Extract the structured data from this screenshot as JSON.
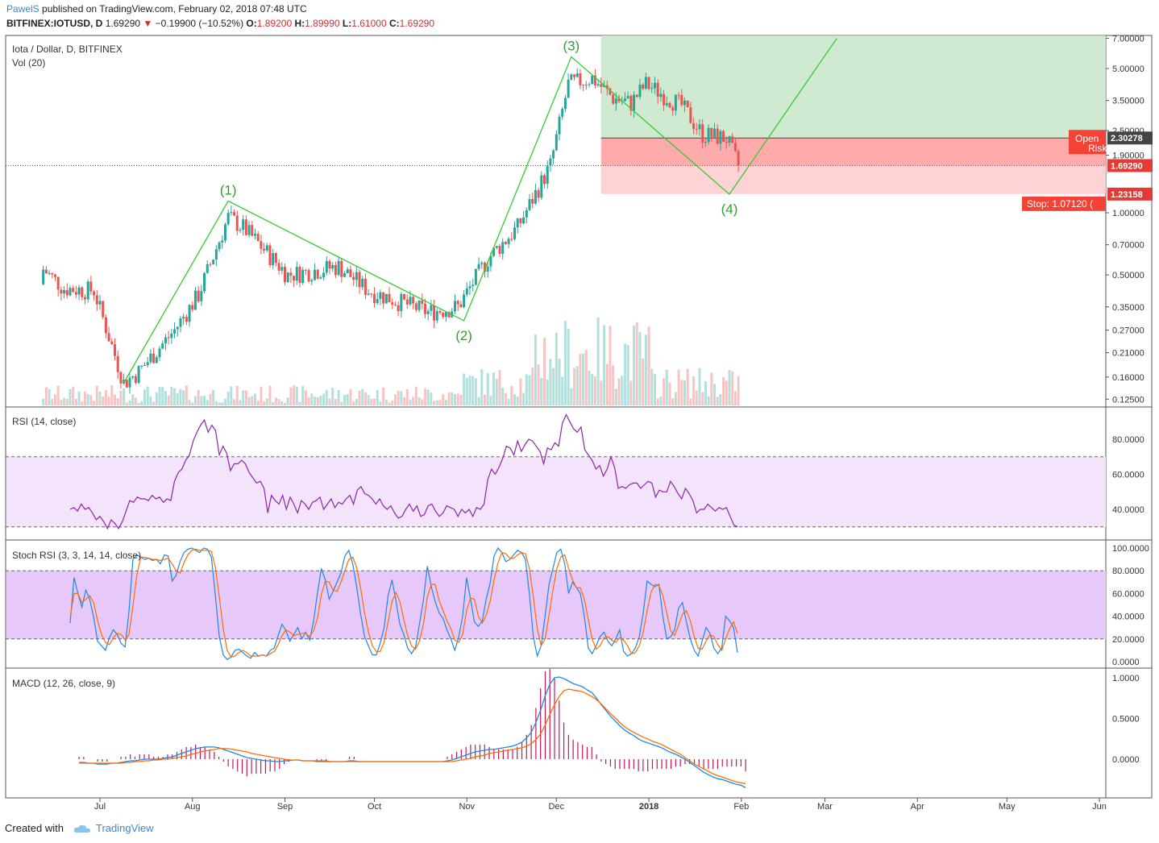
{
  "header": {
    "author": "PawelS",
    "published_text": "published on TradingView.com, February 02, 2018 07:48 UTC",
    "symbol": "BITFINEX:IOTUSD, D",
    "price": "1.69290",
    "change": "−0.19900 (−10.52%)",
    "o_label": "O:",
    "o_value": "1.89200",
    "h_label": "H:",
    "h_value": "1.89990",
    "l_label": "L:",
    "l_value": "1.61000",
    "c_label": "C:",
    "c_value": "1.69290"
  },
  "footer": {
    "created_with": "Created with",
    "brand": "TradingView"
  },
  "chart_data": [
    {
      "type": "candlestick",
      "title": "Iota / Dollar, D, BITFINEX",
      "volume_label": "Vol (20)",
      "y_scale": "log",
      "y_ticks": [
        "7.00000",
        "5.00000",
        "3.50000",
        "2.50000",
        "1.90000",
        "1.00000",
        "0.70000",
        "0.50000",
        "0.35000",
        "0.27000",
        "0.21000",
        "0.16000",
        "0.12500"
      ],
      "x_ticks": [
        "Jul",
        "Aug",
        "Sep",
        "Oct",
        "Nov",
        "Dec",
        "2018",
        "Feb",
        "Mar",
        "Apr",
        "May",
        "Jun"
      ],
      "last_price": 1.6929,
      "last_price_label": "1.69290",
      "swing_points": [
        {
          "label": "(1)",
          "date": "2017-08-13",
          "price": 1.14
        },
        {
          "label": "(2)",
          "date": "2017-10-31",
          "price": 0.3
        },
        {
          "label": "(3)",
          "date": "2017-12-06",
          "price": 5.7
        },
        {
          "label": "(4)",
          "date": "2018-01-28",
          "price": 1.23
        }
      ],
      "wave_path": [
        {
          "date": "2017-07-09",
          "price": 0.15
        },
        {
          "date": "2017-08-13",
          "price": 1.14
        },
        {
          "date": "2017-10-31",
          "price": 0.3
        },
        {
          "date": "2017-12-06",
          "price": 5.7
        },
        {
          "date": "2018-01-28",
          "price": 1.23
        },
        {
          "date": "2018-03-05",
          "price": 7.0
        }
      ],
      "position": {
        "open_label": "Open",
        "risk_label": "Risk",
        "entry": 2.30278,
        "entry_label": "2.30278",
        "stop_level": 1.23158,
        "stop_level_label": "1.23158",
        "stop_text": "Stop: 1.07120 (",
        "target": 7.0
      },
      "colors": {
        "up": "#26a69a",
        "down": "#ef5350",
        "wave": "#33cc33",
        "target_zone": "#c8e6c9",
        "stop_zone": "#ffcdd2",
        "price_line": "#d32f2f"
      }
    },
    {
      "type": "line",
      "title": "RSI (14, close)",
      "y_ticks": [
        "80.0000",
        "60.0000",
        "40.0000"
      ],
      "bands": [
        30,
        70
      ],
      "series": [
        {
          "values": [
            40,
            41,
            39,
            43,
            40,
            41,
            38,
            34,
            36,
            33,
            29,
            34,
            32,
            29,
            33,
            39,
            45,
            44,
            47,
            46,
            46,
            45,
            48,
            46,
            47,
            44,
            46,
            45,
            56,
            61,
            63,
            68,
            71,
            79,
            84,
            88,
            91,
            84,
            88,
            85,
            71,
            76,
            72,
            62,
            66,
            66,
            68,
            66,
            61,
            58,
            55,
            56,
            52,
            38,
            48,
            45,
            43,
            48,
            40,
            47,
            43,
            38,
            45,
            43,
            40,
            44,
            45,
            47,
            40,
            43,
            46,
            41,
            44,
            43,
            46,
            48,
            43,
            51,
            53,
            49,
            48,
            46,
            43,
            46,
            42,
            40,
            42,
            38,
            35,
            36,
            40,
            43,
            39,
            42,
            36,
            37,
            42,
            43,
            39,
            36,
            38,
            42,
            41,
            40,
            36,
            40,
            38,
            40,
            36,
            41,
            40,
            43,
            57,
            63,
            60,
            64,
            69,
            76,
            75,
            71,
            79,
            73,
            77,
            80,
            79,
            76,
            73,
            66,
            75,
            74,
            78,
            76,
            89,
            94,
            90,
            86,
            84,
            87,
            74,
            71,
            68,
            63,
            65,
            59,
            63,
            70,
            64,
            52,
            53,
            52,
            54,
            55,
            55,
            52,
            54,
            56,
            55,
            47,
            51,
            50,
            50,
            56,
            53,
            49,
            46,
            52,
            49,
            45,
            38,
            40,
            40,
            43,
            41,
            39,
            41,
            40,
            41,
            36,
            31,
            30
          ]
        }
      ]
    },
    {
      "type": "line",
      "title": "Stoch RSI (3, 3, 14, 14, close)",
      "y_ticks": [
        "100.0000",
        "80.0000",
        "60.0000",
        "40.0000",
        "20.0000",
        "0.0000"
      ],
      "bands": [
        20,
        80
      ],
      "series": [
        {
          "name": "K",
          "values": [
            34,
            74,
            60,
            48,
            63,
            55,
            39,
            18,
            14,
            10,
            21,
            28,
            24,
            16,
            13,
            44,
            90,
            94,
            92,
            90,
            91,
            89,
            90,
            86,
            94,
            93,
            71,
            76,
            88,
            96,
            99,
            100,
            98,
            96,
            100,
            99,
            92,
            58,
            22,
            6,
            2,
            4,
            10,
            11,
            8,
            5,
            3,
            8,
            5,
            6,
            5,
            10,
            12,
            23,
            33,
            27,
            18,
            24,
            30,
            20,
            26,
            19,
            35,
            60,
            82,
            72,
            55,
            62,
            70,
            78,
            93,
            98,
            86,
            66,
            42,
            22,
            14,
            6,
            6,
            16,
            30,
            58,
            72,
            54,
            33,
            24,
            12,
            7,
            13,
            33,
            54,
            84,
            66,
            53,
            43,
            38,
            28,
            20,
            10,
            22,
            40,
            74,
            55,
            35,
            31,
            36,
            55,
            69,
            93,
            100,
            96,
            88,
            90,
            94,
            98,
            96,
            90,
            60,
            22,
            5,
            14,
            40,
            68,
            82,
            96,
            99,
            86,
            60,
            70,
            65,
            60,
            40,
            12,
            7,
            14,
            22,
            26,
            18,
            14,
            20,
            28,
            9,
            5,
            7,
            12,
            22,
            43,
            71,
            68,
            66,
            68,
            40,
            20,
            22,
            28,
            47,
            52,
            35,
            20,
            10,
            5,
            18,
            30,
            25,
            12,
            7,
            12,
            40,
            36,
            30,
            8
          ]
        },
        {
          "name": "D",
          "values": [
            39,
            60,
            60,
            52,
            55,
            58,
            52,
            36,
            24,
            17,
            15,
            21,
            25,
            24,
            19,
            24,
            49,
            76,
            92,
            92,
            91,
            90,
            90,
            89,
            90,
            91,
            86,
            80,
            78,
            87,
            94,
            98,
            99,
            98,
            98,
            98,
            97,
            83,
            57,
            29,
            10,
            4,
            5,
            8,
            10,
            8,
            5,
            5,
            5,
            6,
            5,
            7,
            9,
            15,
            23,
            28,
            26,
            23,
            24,
            25,
            25,
            22,
            27,
            38,
            59,
            71,
            70,
            63,
            62,
            70,
            80,
            90,
            92,
            83,
            65,
            43,
            26,
            14,
            9,
            9,
            17,
            35,
            53,
            61,
            53,
            37,
            23,
            14,
            11,
            18,
            33,
            57,
            68,
            68,
            54,
            45,
            36,
            29,
            19,
            17,
            24,
            45,
            56,
            55,
            40,
            34,
            41,
            53,
            72,
            87,
            96,
            95,
            91,
            91,
            94,
            96,
            95,
            82,
            57,
            29,
            14,
            20,
            41,
            63,
            82,
            92,
            94,
            82,
            72,
            65,
            65,
            55,
            37,
            20,
            11,
            14,
            21,
            22,
            19,
            17,
            21,
            19,
            14,
            7,
            8,
            14,
            26,
            45,
            61,
            68,
            67,
            58,
            43,
            27,
            23,
            32,
            42,
            45,
            36,
            22,
            12,
            11,
            18,
            24,
            22,
            15,
            10,
            20,
            29,
            35,
            25
          ]
        }
      ]
    },
    {
      "type": "line",
      "title": "MACD (12, 26, close, 9)",
      "y_ticks": [
        "1.0000",
        "0.5000",
        "0.0000"
      ],
      "series": [
        {
          "name": "MACD",
          "values": [
            -0.04,
            -0.04,
            -0.05,
            -0.05,
            -0.06,
            -0.06,
            -0.06,
            -0.05,
            -0.05,
            -0.04,
            -0.03,
            -0.02,
            -0.02,
            -0.01,
            0.0,
            0.0,
            0.0,
            0.0,
            0.01,
            0.02,
            0.03,
            0.05,
            0.07,
            0.09,
            0.11,
            0.13,
            0.14,
            0.15,
            0.15,
            0.15,
            0.14,
            0.12,
            0.1,
            0.08,
            0.06,
            0.04,
            0.02,
            0.01,
            0.0,
            -0.01,
            -0.02,
            -0.02,
            -0.03,
            -0.03,
            -0.02,
            -0.02,
            -0.01,
            -0.01,
            -0.02,
            -0.02,
            -0.02,
            -0.03,
            -0.03,
            -0.03,
            -0.03,
            -0.03,
            -0.03,
            -0.03,
            -0.02,
            -0.02,
            -0.03,
            -0.03,
            -0.03,
            -0.03,
            -0.03,
            -0.03,
            -0.03,
            -0.03,
            -0.03,
            -0.03,
            -0.03,
            -0.03,
            -0.03,
            -0.03,
            -0.03,
            -0.03,
            -0.03,
            -0.03,
            -0.03,
            -0.02,
            -0.01,
            0.01,
            0.03,
            0.05,
            0.07,
            0.09,
            0.1,
            0.11,
            0.12,
            0.12,
            0.13,
            0.14,
            0.15,
            0.16,
            0.18,
            0.21,
            0.26,
            0.33,
            0.45,
            0.6,
            0.78,
            0.92,
            1.0,
            1.01,
            0.99,
            0.96,
            0.93,
            0.91,
            0.89,
            0.85,
            0.82,
            0.75,
            0.67,
            0.6,
            0.53,
            0.47,
            0.41,
            0.36,
            0.32,
            0.29,
            0.25,
            0.22,
            0.2,
            0.18,
            0.16,
            0.14,
            0.11,
            0.08,
            0.06,
            0.03,
            0.0,
            -0.04,
            -0.08,
            -0.12,
            -0.16,
            -0.19,
            -0.22,
            -0.24,
            -0.25,
            -0.27,
            -0.29,
            -0.31,
            -0.32,
            -0.35
          ]
        },
        {
          "name": "Signal",
          "values": [
            -0.05,
            -0.05,
            -0.05,
            -0.05,
            -0.05,
            -0.05,
            -0.05,
            -0.05,
            -0.05,
            -0.05,
            -0.04,
            -0.04,
            -0.03,
            -0.03,
            -0.02,
            -0.02,
            -0.01,
            -0.01,
            0.0,
            0.0,
            0.01,
            0.02,
            0.03,
            0.04,
            0.06,
            0.07,
            0.09,
            0.1,
            0.11,
            0.12,
            0.13,
            0.13,
            0.13,
            0.12,
            0.11,
            0.1,
            0.09,
            0.07,
            0.06,
            0.05,
            0.04,
            0.03,
            0.02,
            0.01,
            0.0,
            -0.01,
            -0.01,
            -0.01,
            -0.02,
            -0.02,
            -0.02,
            -0.02,
            -0.02,
            -0.02,
            -0.03,
            -0.03,
            -0.03,
            -0.03,
            -0.03,
            -0.03,
            -0.03,
            -0.03,
            -0.03,
            -0.03,
            -0.03,
            -0.03,
            -0.03,
            -0.03,
            -0.03,
            -0.03,
            -0.03,
            -0.03,
            -0.03,
            -0.03,
            -0.03,
            -0.03,
            -0.03,
            -0.03,
            -0.03,
            -0.03,
            -0.03,
            -0.02,
            -0.01,
            0.0,
            0.01,
            0.03,
            0.04,
            0.05,
            0.07,
            0.08,
            0.09,
            0.1,
            0.11,
            0.12,
            0.13,
            0.14,
            0.16,
            0.19,
            0.24,
            0.31,
            0.42,
            0.55,
            0.67,
            0.77,
            0.84,
            0.86,
            0.85,
            0.84,
            0.83,
            0.8,
            0.77,
            0.73,
            0.68,
            0.62,
            0.56,
            0.51,
            0.45,
            0.4,
            0.36,
            0.33,
            0.3,
            0.27,
            0.25,
            0.22,
            0.2,
            0.18,
            0.15,
            0.12,
            0.09,
            0.06,
            0.02,
            -0.02,
            -0.06,
            -0.09,
            -0.12,
            -0.15,
            -0.18,
            -0.2,
            -0.22,
            -0.24,
            -0.26,
            -0.28,
            -0.29,
            -0.3
          ]
        }
      ]
    }
  ]
}
